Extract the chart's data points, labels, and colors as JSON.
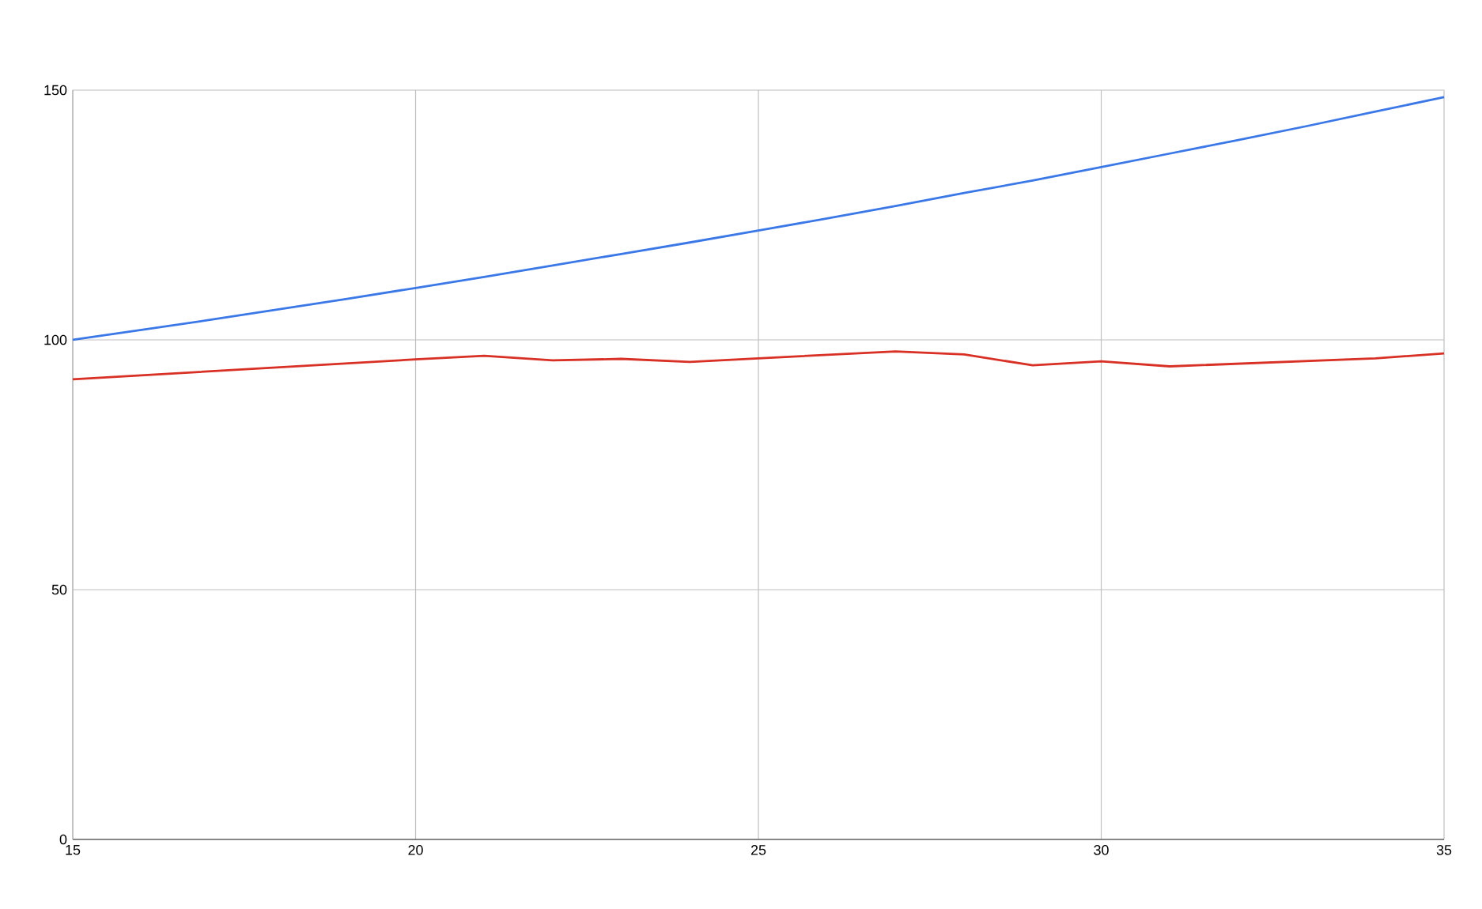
{
  "chart_data": {
    "type": "line",
    "x": [
      15,
      16,
      17,
      18,
      19,
      20,
      21,
      22,
      23,
      24,
      25,
      26,
      27,
      28,
      29,
      30,
      31,
      32,
      33,
      34,
      35
    ],
    "series": [
      {
        "color": "#3b78e7",
        "values": [
          100,
          102,
          104.0,
          106.1,
          108.2,
          110.4,
          112.6,
          114.9,
          117.2,
          119.5,
          121.9,
          124.3,
          126.8,
          129.4,
          131.9,
          134.6,
          137.3,
          140.0,
          142.8,
          145.7,
          148.6
        ]
      },
      {
        "color": "#d93025",
        "values": [
          92.1,
          null,
          null,
          null,
          null,
          96.1,
          96.8,
          95.9,
          96.2,
          95.6,
          96.3,
          null,
          97.7,
          97.1,
          94.9,
          95.7,
          94.7,
          null,
          null,
          96.3,
          97.3
        ]
      }
    ],
    "xlim": [
      15,
      35
    ],
    "ylim": [
      0,
      150
    ],
    "xticks": [
      15,
      20,
      25,
      30,
      35
    ],
    "yticks": [
      0,
      50,
      100,
      150
    ],
    "grid": true,
    "marker": "none",
    "line_style": "solid"
  }
}
